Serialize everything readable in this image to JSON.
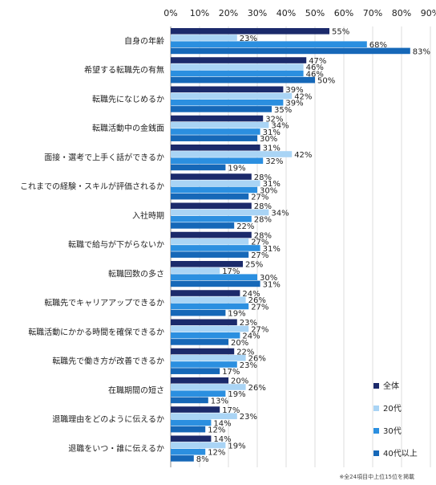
{
  "chart_data": {
    "type": "bar",
    "orientation": "horizontal",
    "xlim": [
      0,
      90
    ],
    "x_ticks": [
      "0%",
      "10%",
      "20%",
      "30%",
      "40%",
      "50%",
      "60%",
      "70%",
      "80%",
      "90%"
    ],
    "categories": [
      "自身の年齢",
      "希望する転職先の有無",
      "転職先になじめるか",
      "転職活動中の金銭面",
      "面接・選考で上手く話ができるか",
      "これまでの経験・スキルが評価されるか",
      "入社時期",
      "転職で給与が下がらないか",
      "転職回数の多さ",
      "転職先でキャリアアップできるか",
      "転職活動にかかる時間を確保できるか",
      "転職先で働き方が改善できるか",
      "在職期間の短さ",
      "退職理由をどのように伝えるか",
      "退職をいつ・誰に伝えるか"
    ],
    "series": [
      {
        "name": "全体",
        "color": "#1b2a6b",
        "values": [
          55,
          47,
          39,
          32,
          31,
          28,
          28,
          28,
          25,
          24,
          23,
          22,
          20,
          17,
          14
        ]
      },
      {
        "name": "20代",
        "color": "#a9d4f5",
        "values": [
          23,
          46,
          42,
          34,
          42,
          31,
          34,
          27,
          17,
          26,
          27,
          26,
          26,
          23,
          19
        ]
      },
      {
        "name": "30代",
        "color": "#2b8fe0",
        "values": [
          68,
          46,
          39,
          31,
          32,
          30,
          28,
          31,
          30,
          27,
          24,
          23,
          19,
          14,
          12
        ]
      },
      {
        "name": "40代以上",
        "color": "#1668b8",
        "values": [
          83,
          50,
          35,
          30,
          19,
          27,
          22,
          27,
          31,
          19,
          20,
          17,
          13,
          12,
          8
        ]
      }
    ],
    "value_suffix": "%",
    "legend_position": "right-bottom",
    "grid": true,
    "footnote": "※全24項目中上位15位を掲載"
  }
}
